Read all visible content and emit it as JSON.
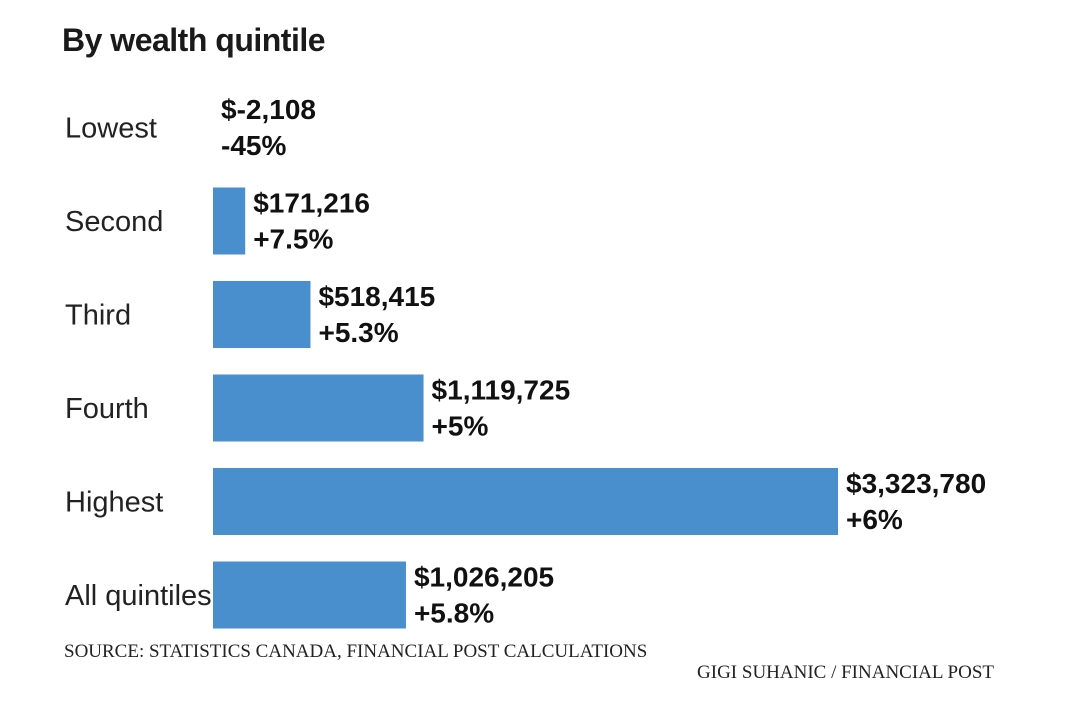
{
  "chart_data": {
    "type": "bar",
    "orientation": "horizontal",
    "title": "By wealth quintile",
    "categories": [
      "Lowest",
      "Second",
      "Third",
      "Fourth",
      "Highest",
      "All quintiles"
    ],
    "values": [
      -2108,
      171216,
      518415,
      1119725,
      3323780,
      1026205
    ],
    "value_labels": [
      "$-2,108",
      "$171,216",
      "$518,415",
      "$1,119,725",
      "$3,323,780",
      "$1,026,205"
    ],
    "change_labels": [
      "-45%",
      "+7.5%",
      "+5.3%",
      "+5%",
      "+6%",
      "+5.8%"
    ],
    "bar_color": "#4a8fcd",
    "grid": false,
    "xlim": [
      0,
      3323780
    ]
  },
  "source": "SOURCE: STATISTICS CANADA, FINANCIAL POST CALCULATIONS",
  "credit": "GIGI SUHANIC / FINANCIAL POST"
}
